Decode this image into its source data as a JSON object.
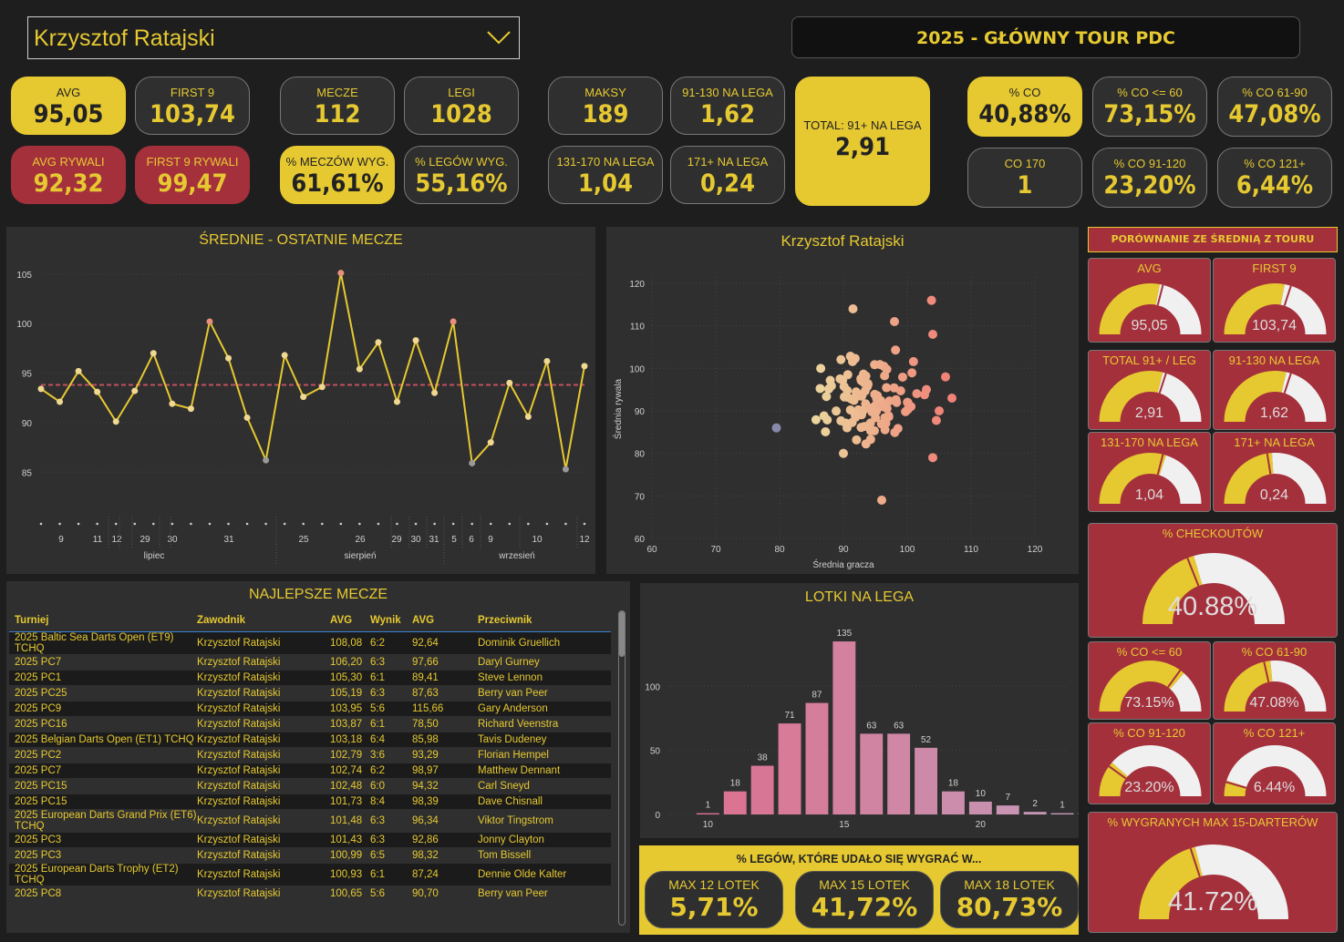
{
  "player": "Krzysztof Ratajski",
  "title": "2025 - GŁÓWNY TOUR PDC",
  "stats": {
    "avg": {
      "label": "AVG",
      "value": "95,05"
    },
    "first9": {
      "label": "FIRST 9",
      "value": "103,74"
    },
    "avg_opp": {
      "label": "AVG RYWALI",
      "value": "92,32"
    },
    "first9_opp": {
      "label": "FIRST 9 RYWALI",
      "value": "99,47"
    },
    "matches": {
      "label": "MECZE",
      "value": "112"
    },
    "legs": {
      "label": "LEGI",
      "value": "1028"
    },
    "match_win": {
      "label": "% MECZÓW WYG.",
      "value": "61,61%"
    },
    "leg_win": {
      "label": "% LEGÓW WYG.",
      "value": "55,16%"
    },
    "max": {
      "label": "MAKSY",
      "value": "189"
    },
    "s91": {
      "label": "91-130 NA LEGA",
      "value": "1,62"
    },
    "s131": {
      "label": "131-170 NA LEGA",
      "value": "1,04"
    },
    "s171": {
      "label": "171+ NA LEGA",
      "value": "0,24"
    },
    "total91": {
      "label": "TOTAL: 91+ NA LEGA",
      "value": "2,91"
    },
    "co": {
      "label": "% CO",
      "value": "40,88%"
    },
    "co60": {
      "label": "% CO <= 60",
      "value": "73,15%"
    },
    "co6190": {
      "label": "% CO 61-90",
      "value": "47,08%"
    },
    "co170": {
      "label": "CO 170",
      "value": "1"
    },
    "co91120": {
      "label": "% CO 91-120",
      "value": "23,20%"
    },
    "co121": {
      "label": "% CO 121+",
      "value": "6,44%"
    }
  },
  "line_chart": {
    "title": "ŚREDNIE - OSTATNIE MECZE",
    "y_ticks": [
      "105",
      "100",
      "95",
      "90",
      "85"
    ],
    "day_labels": [
      "9",
      "11",
      "12",
      "29",
      "30",
      "31",
      "25",
      "26",
      "29",
      "30",
      "31",
      "5",
      "6",
      "9",
      "10",
      "12"
    ],
    "month_labels": [
      "lipiec",
      "sierpień",
      "wrzesień"
    ]
  },
  "scatter": {
    "title": "Krzysztof Ratajski",
    "xlabel": "Średnia gracza",
    "ylabel": "Średnia rywala",
    "x_ticks": [
      "60",
      "70",
      "80",
      "90",
      "100",
      "110",
      "120"
    ],
    "y_ticks": [
      "120",
      "110",
      "100",
      "90",
      "80",
      "70",
      "60"
    ]
  },
  "table": {
    "title": "NAJLEPSZE MECZE",
    "headers": [
      "Turniej",
      "Zawodnik",
      "AVG",
      "Wynik",
      "AVG",
      "Przeciwnik"
    ],
    "rows": [
      [
        "2025 Baltic Sea Darts Open (ET9) TCHQ",
        "Krzysztof Ratajski",
        "108,08",
        "6:2",
        "92,64",
        "Dominik Gruellich"
      ],
      [
        "2025 PC7",
        "Krzysztof Ratajski",
        "106,20",
        "6:3",
        "97,66",
        "Daryl Gurney"
      ],
      [
        "2025 PC1",
        "Krzysztof Ratajski",
        "105,30",
        "6:1",
        "89,41",
        "Steve Lennon"
      ],
      [
        "2025 PC25",
        "Krzysztof Ratajski",
        "105,19",
        "6:3",
        "87,63",
        "Berry van Peer"
      ],
      [
        "2025 PC9",
        "Krzysztof Ratajski",
        "103,95",
        "5:6",
        "115,66",
        "Gary Anderson"
      ],
      [
        "2025 PC16",
        "Krzysztof Ratajski",
        "103,87",
        "6:1",
        "78,50",
        "Richard Veenstra"
      ],
      [
        "2025 Belgian Darts Open (ET1) TCHQ",
        "Krzysztof Ratajski",
        "103,18",
        "6:4",
        "85,98",
        "Tavis Dudeney"
      ],
      [
        "2025 PC2",
        "Krzysztof Ratajski",
        "102,79",
        "3:6",
        "93,29",
        "Florian Hempel"
      ],
      [
        "2025 PC7",
        "Krzysztof Ratajski",
        "102,74",
        "6:2",
        "98,97",
        "Matthew Dennant"
      ],
      [
        "2025 PC15",
        "Krzysztof Ratajski",
        "102,48",
        "6:0",
        "94,32",
        "Carl Sneyd"
      ],
      [
        "2025 PC15",
        "Krzysztof Ratajski",
        "101,73",
        "8:4",
        "98,39",
        "Dave Chisnall"
      ],
      [
        "2025 European Darts Grand Prix (ET6) TCHQ",
        "Krzysztof Ratajski",
        "101,48",
        "6:3",
        "96,34",
        "Viktor Tingstrom"
      ],
      [
        "2025 PC3",
        "Krzysztof Ratajski",
        "101,43",
        "6:3",
        "92,86",
        "Jonny Clayton"
      ],
      [
        "2025 PC3",
        "Krzysztof Ratajski",
        "100,99",
        "6:5",
        "98,32",
        "Tom Bissell"
      ],
      [
        "2025 European Darts Trophy (ET2) TCHQ",
        "Krzysztof Ratajski",
        "100,93",
        "6:1",
        "87,24",
        "Dennie Olde Kalter"
      ],
      [
        "2025 PC8",
        "Krzysztof Ratajski",
        "100,65",
        "5:6",
        "90,70",
        "Berry van Peer"
      ]
    ]
  },
  "chart_data": {
    "type": "bar",
    "title": "LOTKI NA LEGA",
    "categories": [
      9,
      10,
      11,
      12,
      13,
      14,
      15,
      16,
      17,
      18,
      19,
      20,
      21,
      22,
      23,
      24
    ],
    "values": [
      0,
      1,
      18,
      38,
      71,
      87,
      135,
      63,
      63,
      52,
      18,
      10,
      7,
      2,
      1,
      1
    ],
    "x_ticks": [
      "10",
      "15",
      "20"
    ],
    "y_ticks": [
      "100",
      "50",
      "0"
    ],
    "ylim": [
      0,
      145
    ]
  },
  "compare": {
    "title": "PORÓWNANIE ZE ŚREDNIĄ Z TOURU",
    "gauges": [
      {
        "label": "AVG",
        "value": "95,05",
        "frac": 0.56,
        "mark": 0.58
      },
      {
        "label": "FIRST 9",
        "value": "103,74",
        "frac": 0.56,
        "mark": 0.6
      },
      {
        "label": "TOTAL 91+ / LEG",
        "value": "2,91",
        "frac": 0.58,
        "mark": 0.6
      },
      {
        "label": "91-130 NA LEGA",
        "value": "1,62",
        "frac": 0.57,
        "mark": 0.6
      },
      {
        "label": "131-170 NA LEGA",
        "value": "1,04",
        "frac": 0.6,
        "mark": 0.58
      },
      {
        "label": "171+ NA LEGA",
        "value": "0,24",
        "frac": 0.48,
        "mark": 0.45
      },
      {
        "label": "% CHECKOUTÓW",
        "value": "40.88%",
        "frac": 0.41,
        "mark": 0.38
      },
      {
        "label": "% CO <= 60",
        "value": "73.15%",
        "frac": 0.73,
        "mark": 0.7
      },
      {
        "label": "% CO 61-90",
        "value": "47.08%",
        "frac": 0.47,
        "mark": 0.43
      },
      {
        "label": "% CO 91-120",
        "value": "23.20%",
        "frac": 0.23,
        "mark": 0.2
      },
      {
        "label": "% CO 121+",
        "value": "6.44%",
        "frac": 0.1,
        "mark": 0.09
      },
      {
        "label": "% WYGRANYCH MAX 15-DARTERÓW",
        "value": "41.72%",
        "frac": 0.42,
        "mark": 0.4
      }
    ]
  },
  "legs_won": {
    "title": "% LEGÓW, KTÓRE UDAŁO SIĘ WYGRAĆ W...",
    "items": [
      {
        "label": "MAX 12 LOTEK",
        "value": "5,71%"
      },
      {
        "label": "MAX 15 LOTEK",
        "value": "41,72%"
      },
      {
        "label": "MAX 18 LOTEK",
        "value": "80,73%"
      }
    ]
  },
  "line_data": {
    "values": [
      93.4,
      92.1,
      95.2,
      93.1,
      90.1,
      93.2,
      97,
      91.9,
      91.4,
      100.2,
      96.5,
      90.5,
      86.2,
      96.8,
      92.6,
      93.6,
      105.1,
      95.4,
      98.1,
      92.1,
      98.3,
      93,
      100.2,
      85.9,
      88,
      94,
      90.6,
      96.2,
      85.3,
      95.7
    ],
    "mean": 93.8,
    "ylim": [
      83,
      107
    ]
  },
  "colors": {
    "yellow": "#e6c931",
    "red": "#a4303c",
    "white": "#f0f0f0"
  }
}
